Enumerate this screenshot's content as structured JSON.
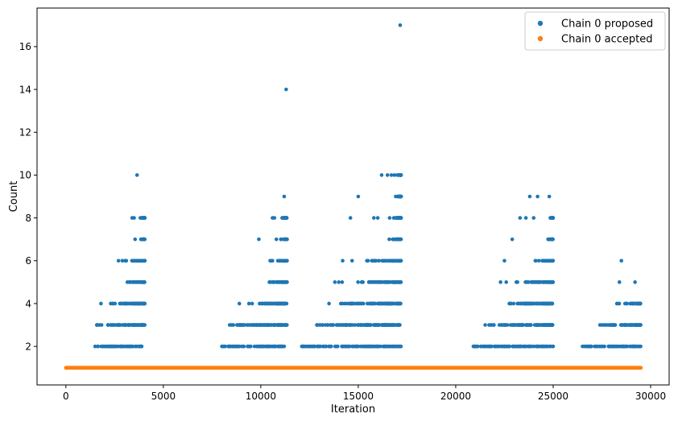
{
  "chart_data": {
    "type": "scatter",
    "title": "",
    "xlabel": "Iteration",
    "ylabel": "Count",
    "xlim": [
      -1480,
      30950
    ],
    "ylim": [
      0.2,
      17.8
    ],
    "xticks": [
      0,
      5000,
      10000,
      15000,
      20000,
      25000,
      30000
    ],
    "yticks": [
      2,
      4,
      6,
      8,
      10,
      12,
      14,
      16
    ],
    "grid": false,
    "legend_position": "top-right",
    "series": [
      {
        "name": "Chain 0 proposed",
        "color": "#1f77b4",
        "clusters": [
          {
            "start": 1500,
            "end": 4050,
            "levels": [
              {
                "y": 2,
                "from": 1500
              },
              {
                "y": 3,
                "from": 1500
              },
              {
                "y": 4,
                "from": 1700
              },
              {
                "y": 5,
                "from": 2800
              },
              {
                "y": 6,
                "from": 2600
              },
              {
                "y": 7,
                "from": 3300
              },
              {
                "y": 8,
                "from": 3350
              }
            ]
          },
          {
            "start": 8000,
            "end": 11350,
            "levels": [
              {
                "y": 2,
                "from": 8000
              },
              {
                "y": 3,
                "from": 8300
              },
              {
                "y": 4,
                "from": 8700
              },
              {
                "y": 5,
                "from": 9800
              },
              {
                "y": 6,
                "from": 9800
              },
              {
                "y": 7,
                "from": 10500
              },
              {
                "y": 8,
                "from": 10750
              }
            ]
          },
          {
            "start": 12100,
            "end": 17200,
            "levels": [
              {
                "y": 2,
                "from": 12100
              },
              {
                "y": 3,
                "from": 12700
              },
              {
                "y": 4,
                "from": 13500
              },
              {
                "y": 5,
                "from": 13800
              },
              {
                "y": 6,
                "from": 14300
              },
              {
                "y": 7,
                "from": 15900
              },
              {
                "y": 8,
                "from": 16200
              },
              {
                "y": 9,
                "from": 16300
              },
              {
                "y": 10,
                "from": 16700
              }
            ]
          },
          {
            "start": 20900,
            "end": 25000,
            "levels": [
              {
                "y": 2,
                "from": 20900
              },
              {
                "y": 3,
                "from": 21400
              },
              {
                "y": 4,
                "from": 21900
              },
              {
                "y": 5,
                "from": 22300
              },
              {
                "y": 6,
                "from": 23200
              },
              {
                "y": 7,
                "from": 24100
              },
              {
                "y": 8,
                "from": 24500
              }
            ]
          },
          {
            "start": 26500,
            "end": 29500,
            "levels": [
              {
                "y": 2,
                "from": 26500
              },
              {
                "y": 3,
                "from": 27300
              },
              {
                "y": 4,
                "from": 28200
              }
            ]
          }
        ],
        "points": [
          {
            "x": 1600,
            "y": 3
          },
          {
            "x": 1800,
            "y": 4
          },
          {
            "x": 2300,
            "y": 4
          },
          {
            "x": 2700,
            "y": 6
          },
          {
            "x": 2900,
            "y": 6
          },
          {
            "x": 3100,
            "y": 6
          },
          {
            "x": 3400,
            "y": 8
          },
          {
            "x": 3500,
            "y": 8
          },
          {
            "x": 3550,
            "y": 7
          },
          {
            "x": 3650,
            "y": 10
          },
          {
            "x": 3850,
            "y": 7
          },
          {
            "x": 3980,
            "y": 8
          },
          {
            "x": 8500,
            "y": 3
          },
          {
            "x": 8900,
            "y": 4
          },
          {
            "x": 9900,
            "y": 7
          },
          {
            "x": 10600,
            "y": 8
          },
          {
            "x": 10700,
            "y": 8
          },
          {
            "x": 10800,
            "y": 7
          },
          {
            "x": 11200,
            "y": 9
          },
          {
            "x": 11300,
            "y": 14
          },
          {
            "x": 13500,
            "y": 4
          },
          {
            "x": 13800,
            "y": 5
          },
          {
            "x": 14000,
            "y": 5
          },
          {
            "x": 14200,
            "y": 6
          },
          {
            "x": 14600,
            "y": 8
          },
          {
            "x": 15000,
            "y": 9
          },
          {
            "x": 15500,
            "y": 6
          },
          {
            "x": 15800,
            "y": 8
          },
          {
            "x": 16000,
            "y": 8
          },
          {
            "x": 16200,
            "y": 10
          },
          {
            "x": 16500,
            "y": 10
          },
          {
            "x": 16700,
            "y": 10
          },
          {
            "x": 16850,
            "y": 10
          },
          {
            "x": 17000,
            "y": 10
          },
          {
            "x": 17150,
            "y": 17
          },
          {
            "x": 22300,
            "y": 5
          },
          {
            "x": 22500,
            "y": 6
          },
          {
            "x": 22900,
            "y": 7
          },
          {
            "x": 23300,
            "y": 8
          },
          {
            "x": 23600,
            "y": 8
          },
          {
            "x": 23800,
            "y": 9
          },
          {
            "x": 24000,
            "y": 8
          },
          {
            "x": 24200,
            "y": 9
          },
          {
            "x": 24800,
            "y": 9
          },
          {
            "x": 27400,
            "y": 3
          },
          {
            "x": 28300,
            "y": 4
          },
          {
            "x": 28400,
            "y": 5
          },
          {
            "x": 28500,
            "y": 6
          },
          {
            "x": 29200,
            "y": 5
          }
        ]
      },
      {
        "name": "Chain 0 accepted",
        "color": "#ff7f0e",
        "accepted_line": {
          "from": 0,
          "to": 29500,
          "y": 1
        }
      }
    ]
  }
}
